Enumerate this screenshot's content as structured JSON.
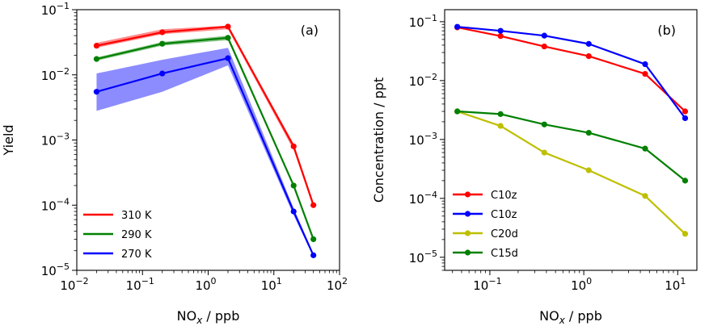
{
  "chart_data": [
    {
      "type": "line",
      "panel_label": "(a)",
      "xscale": "log",
      "yscale": "log",
      "xlim": [
        0.01,
        100
      ],
      "ylim": [
        1e-05,
        0.1
      ],
      "xlabel": "NOx / ppb",
      "ylabel": "Yield",
      "xticks": [
        {
          "value": 0.01,
          "mant": "10",
          "exp": "−2"
        },
        {
          "value": 0.1,
          "mant": "10",
          "exp": "−1"
        },
        {
          "value": 1,
          "mant": "10",
          "exp": "0"
        },
        {
          "value": 10,
          "mant": "10",
          "exp": "1"
        },
        {
          "value": 100,
          "mant": "10",
          "exp": "2"
        }
      ],
      "yticks": [
        {
          "value": 1e-05,
          "mant": "10",
          "exp": "−5"
        },
        {
          "value": 0.0001,
          "mant": "10",
          "exp": "−4"
        },
        {
          "value": 0.001,
          "mant": "10",
          "exp": "−3"
        },
        {
          "value": 0.01,
          "mant": "10",
          "exp": "−2"
        },
        {
          "value": 0.1,
          "mant": "10",
          "exp": "−1"
        }
      ],
      "legend_position": "lower-left",
      "series": [
        {
          "name": "310 K",
          "color": "#ff0000",
          "x": [
            0.02,
            0.2,
            2,
            20,
            40
          ],
          "y": [
            0.028,
            0.045,
            0.055,
            0.0008,
            0.0001
          ],
          "lower": [
            0.026,
            0.042,
            0.05,
            0.0007,
            9.2e-05
          ],
          "upper": [
            0.031,
            0.05,
            0.057,
            0.00088,
            0.000112
          ]
        },
        {
          "name": "290 K",
          "color": "#008000",
          "x": [
            0.02,
            0.2,
            2,
            20,
            40
          ],
          "y": [
            0.0175,
            0.03,
            0.037,
            0.0002,
            3e-05
          ],
          "lower": [
            0.0165,
            0.028,
            0.034,
            0.00019,
            2.8e-05
          ],
          "upper": [
            0.0185,
            0.032,
            0.04,
            0.00021,
            3.2e-05
          ]
        },
        {
          "name": "270 K",
          "color": "#0000ff",
          "x": [
            0.02,
            0.2,
            2,
            20,
            40
          ],
          "y": [
            0.0055,
            0.0105,
            0.018,
            8e-05,
            1.7e-05
          ],
          "lower": [
            0.0028,
            0.0055,
            0.014,
            7e-05,
            1.6e-05
          ],
          "upper": [
            0.0105,
            0.017,
            0.026,
            9e-05,
            1.8e-05
          ]
        }
      ]
    },
    {
      "type": "line",
      "panel_label": "(b)",
      "xscale": "log",
      "yscale": "log",
      "xlim": [
        0.033,
        16
      ],
      "ylim": [
        6e-06,
        0.16
      ],
      "xlabel": "NOx / ppb",
      "ylabel": "Concentration / ppt",
      "xticks": [
        {
          "value": 0.1,
          "mant": "10",
          "exp": "−1"
        },
        {
          "value": 1,
          "mant": "10",
          "exp": "0"
        },
        {
          "value": 10,
          "mant": "10",
          "exp": "1"
        }
      ],
      "yticks": [
        {
          "value": 1e-05,
          "mant": "10",
          "exp": "−5"
        },
        {
          "value": 0.0001,
          "mant": "10",
          "exp": "−4"
        },
        {
          "value": 0.001,
          "mant": "10",
          "exp": "−3"
        },
        {
          "value": 0.01,
          "mant": "10",
          "exp": "−2"
        },
        {
          "value": 0.1,
          "mant": "10",
          "exp": "−1"
        }
      ],
      "legend_position": "lower-left",
      "series": [
        {
          "name": "C10z",
          "color": "#ff0000",
          "x": [
            0.045,
            0.13,
            0.38,
            1.13,
            4.5,
            12
          ],
          "y": [
            0.08,
            0.057,
            0.038,
            0.026,
            0.013,
            0.003
          ]
        },
        {
          "name": "C10z",
          "color": "#0000ff",
          "x": [
            0.045,
            0.13,
            0.38,
            1.13,
            4.5,
            12
          ],
          "y": [
            0.082,
            0.07,
            0.058,
            0.042,
            0.019,
            0.0023
          ]
        },
        {
          "name": "C20d",
          "color": "#bfbf00",
          "x": [
            0.045,
            0.13,
            0.38,
            1.13,
            4.5,
            12
          ],
          "y": [
            0.003,
            0.0017,
            0.0006,
            0.0003,
            0.00011,
            2.5e-05
          ]
        },
        {
          "name": "C15d",
          "color": "#008000",
          "x": [
            0.045,
            0.13,
            0.38,
            1.13,
            4.5,
            12
          ],
          "y": [
            0.003,
            0.0027,
            0.0018,
            0.0013,
            0.0007,
            0.0002
          ]
        }
      ]
    }
  ]
}
